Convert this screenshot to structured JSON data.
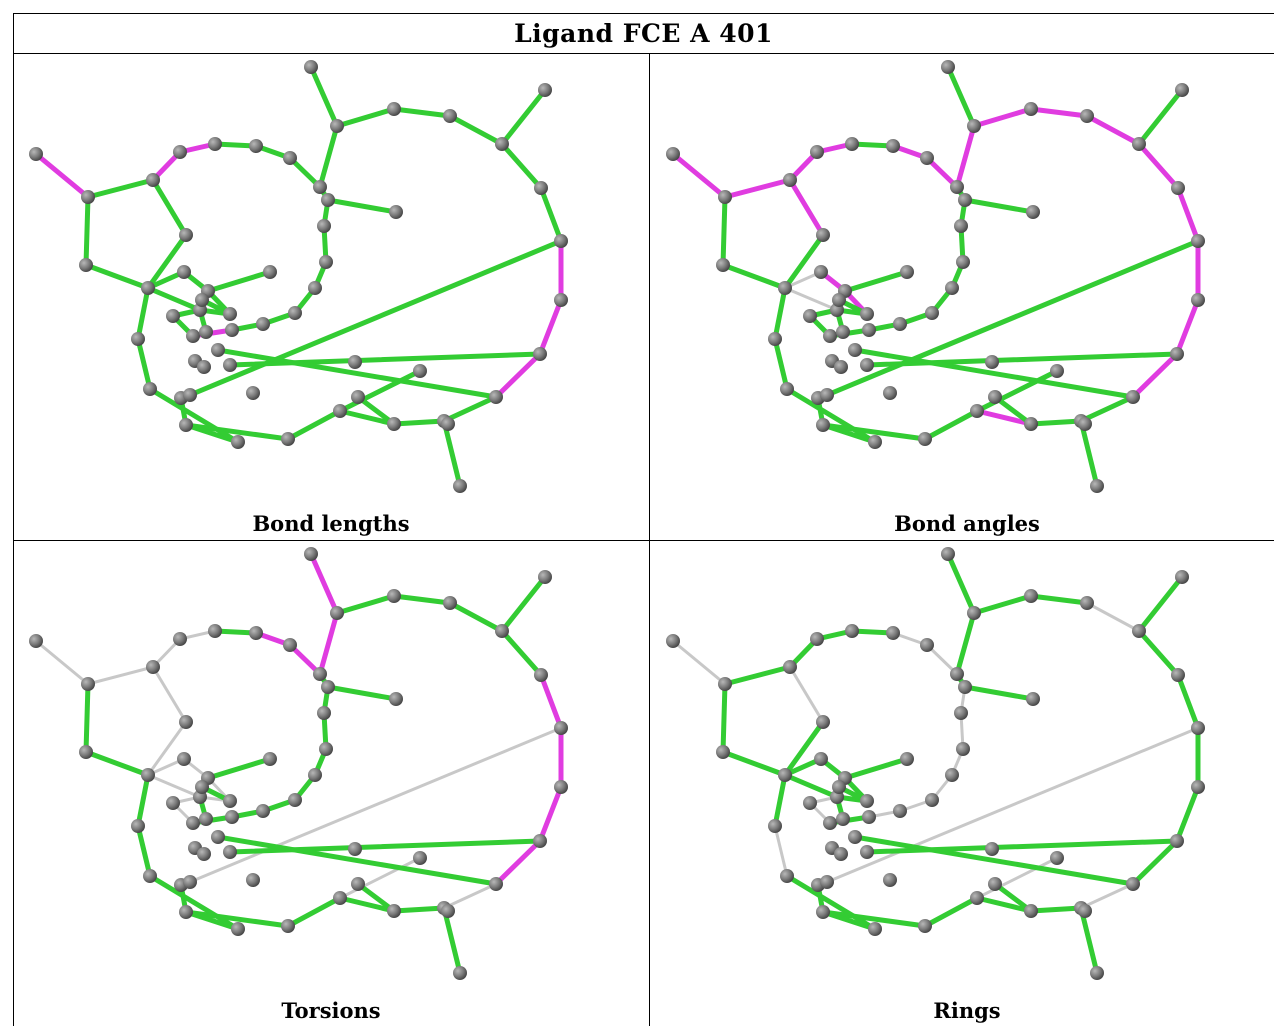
{
  "title": "Ligand FCE A 401",
  "panels": [
    {
      "caption": "Bond lengths",
      "magenta": [
        [
          0,
          1
        ],
        [
          2,
          3
        ],
        [
          3,
          4
        ],
        [
          4,
          9
        ],
        [
          5,
          11
        ],
        [
          15,
          16
        ],
        [
          16,
          20
        ],
        [
          33,
          34
        ],
        [
          34,
          35
        ],
        [
          35,
          36
        ],
        [
          39,
          47
        ],
        [
          52,
          53
        ],
        [
          54,
          58
        ],
        [
          56,
          57
        ]
      ],
      "grey": []
    },
    {
      "caption": "Bond angles",
      "magenta": [
        [
          0,
          1
        ],
        [
          1,
          2
        ],
        [
          2,
          3
        ],
        [
          3,
          4
        ],
        [
          2,
          5
        ],
        [
          5,
          6
        ],
        [
          6,
          7
        ],
        [
          7,
          8
        ],
        [
          8,
          28
        ],
        [
          8,
          48
        ],
        [
          28,
          29
        ],
        [
          29,
          30
        ],
        [
          30,
          31
        ],
        [
          31,
          32
        ],
        [
          32,
          33
        ],
        [
          33,
          34
        ],
        [
          34,
          35
        ],
        [
          35,
          36
        ],
        [
          52,
          53
        ],
        [
          38,
          39
        ],
        [
          10,
          11
        ],
        [
          11,
          12
        ]
      ],
      "grey": [
        [
          4,
          9
        ],
        [
          9,
          10
        ],
        [
          9,
          12
        ],
        [
          9,
          13
        ],
        [
          9,
          17
        ],
        [
          6,
          7
        ]
      ]
    },
    {
      "caption": "Torsions",
      "magenta": [
        [
          6,
          7
        ],
        [
          7,
          8
        ],
        [
          8,
          28
        ],
        [
          28,
          48
        ],
        [
          8,
          52
        ],
        [
          32,
          33
        ],
        [
          33,
          34
        ],
        [
          34,
          35
        ],
        [
          35,
          36
        ],
        [
          40,
          41
        ],
        [
          41,
          42
        ]
      ],
      "grey": [
        [
          0,
          1
        ],
        [
          1,
          2
        ],
        [
          2,
          3
        ],
        [
          3,
          4
        ],
        [
          4,
          9
        ],
        [
          2,
          5
        ],
        [
          9,
          10
        ],
        [
          9,
          12
        ],
        [
          9,
          13
        ],
        [
          9,
          17
        ],
        [
          10,
          11
        ],
        [
          11,
          12
        ],
        [
          12,
          13
        ],
        [
          13,
          14
        ],
        [
          14,
          15
        ],
        [
          13,
          16
        ],
        [
          5,
          9
        ],
        [
          10,
          15
        ],
        [
          36,
          37
        ],
        [
          28,
          49
        ],
        [
          31,
          50
        ],
        [
          39,
          51
        ],
        [
          33,
          54
        ],
        [
          47,
          39
        ],
        [
          56,
          57
        ],
        [
          54,
          58
        ]
      ]
    },
    {
      "caption": "Rings",
      "magenta": [],
      "grey": [
        [
          0,
          1
        ],
        [
          2,
          5
        ],
        [
          5,
          6
        ],
        [
          6,
          7
        ],
        [
          7,
          8
        ],
        [
          16,
          17
        ],
        [
          17,
          18
        ],
        [
          18,
          19
        ],
        [
          19,
          20
        ],
        [
          20,
          21
        ],
        [
          21,
          22
        ],
        [
          22,
          23
        ],
        [
          23,
          24
        ],
        [
          24,
          25
        ],
        [
          25,
          26
        ],
        [
          27,
          31
        ],
        [
          30,
          31
        ],
        [
          28,
          49
        ],
        [
          31,
          50
        ],
        [
          39,
          51
        ],
        [
          47,
          39
        ],
        [
          54,
          58
        ],
        [
          56,
          57
        ],
        [
          13,
          14
        ],
        [
          14,
          15
        ],
        [
          33,
          54
        ],
        [
          36,
          37
        ],
        [
          32,
          53
        ],
        [
          32,
          55
        ]
      ]
    }
  ],
  "colors": {
    "bond_green": "#33cc33",
    "bond_magenta": "#e03ce0",
    "bond_grey": "#c8c8c8",
    "atom": "#7a7a7a"
  }
}
